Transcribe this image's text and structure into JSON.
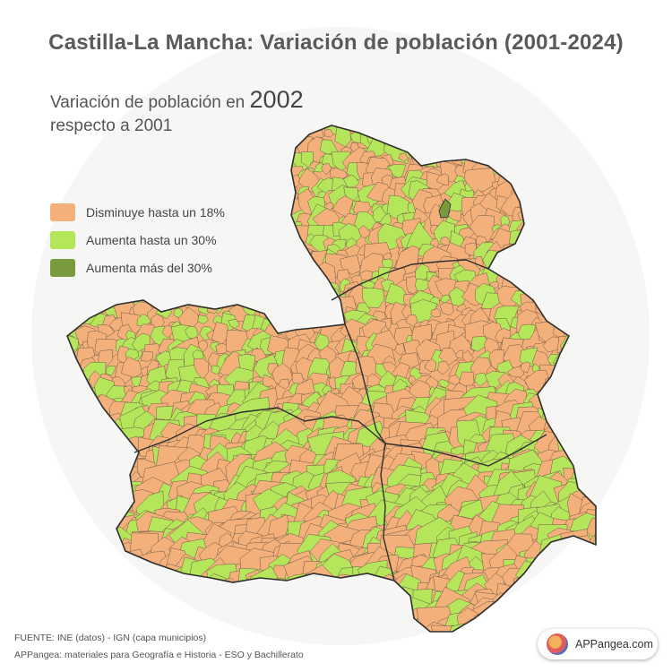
{
  "title": "Castilla-La Mancha: Variación de población (2001-2024)",
  "subtitle": {
    "line1": "Variación de población en",
    "year": "2002",
    "line2": "respecto a 2001"
  },
  "legend": [
    {
      "label": "Disminuye hasta un 18%",
      "color": "#f4b07a"
    },
    {
      "label": "Aumenta hasta un 30%",
      "color": "#b5e55b"
    },
    {
      "label": "Aumenta más del 30%",
      "color": "#7a9a3e"
    }
  ],
  "colors": {
    "decrease": "#f4b07a",
    "increase": "#b5e55b",
    "strong_increase": "#7a9a3e",
    "border": "#3a3a3a",
    "background": "#f6f6f4"
  },
  "footer": {
    "source": "FUENTE: INE (datos) - IGN (capa municipios)",
    "credit": "APPangea: materiales para Geografía e Historia - ESO y Bachillerato"
  },
  "badge": {
    "text": "APPangea.com",
    "icon": "appangea-logo-icon"
  }
}
